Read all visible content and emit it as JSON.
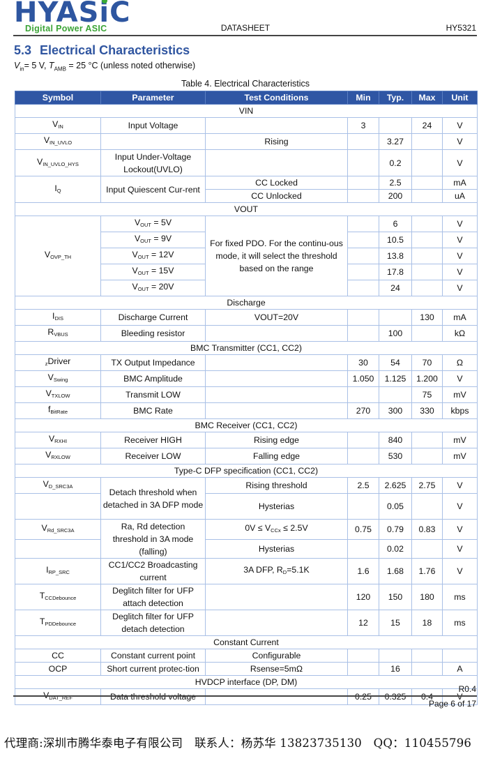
{
  "header": {
    "logo": "HYASiC",
    "tagline": "Digital Power ASIC",
    "doc_type": "DATASHEET",
    "part_number": "HY5321"
  },
  "section": {
    "number": "5.3",
    "title": "Electrical Characteristics",
    "conditions": {
      "v": "V",
      "v_sub": "in",
      "v_text": "= 5 V, ",
      "t": "T",
      "t_sub": "AMB",
      "t_text": " = 25 °C (unless noted otherwise)"
    }
  },
  "table": {
    "caption": "Table 4. Electrical Characteristics",
    "headers": [
      "Symbol",
      "Parameter",
      "Test Conditions",
      "Min",
      "Typ.",
      "Max",
      "Unit"
    ],
    "sections": [
      {
        "title": "VIN",
        "rows": [
          {
            "symbol": {
              "base": "V",
              "sub": "IN"
            },
            "parameter": "Input Voltage",
            "conditions": "",
            "min": "3",
            "typ": "",
            "max": "24",
            "unit": "V"
          },
          {
            "symbol": {
              "base": "V",
              "sub": "IN_UVLO"
            },
            "parameter": "",
            "conditions": "Rising",
            "min": "",
            "typ": "3.27",
            "max": "",
            "unit": "V"
          },
          {
            "symbol": {
              "base": "V",
              "sub": "IN_UVLO_HYS"
            },
            "parameter": "Input Under-Voltage Lockout(UVLO)",
            "conditions": "",
            "min": "",
            "typ": "0.2",
            "max": "",
            "unit": "V"
          },
          {
            "symbol": {
              "base": "I",
              "sub": "Q"
            },
            "parameter": "Input Quiescent Cur-rent",
            "conditions": "CC Locked",
            "min": "",
            "typ": "2.5",
            "max": "",
            "unit": "mA"
          },
          {
            "conditions": "CC Unlocked",
            "min": "",
            "typ": "200",
            "max": "",
            "unit": "uA"
          }
        ]
      },
      {
        "title": "VOUT",
        "rows": [
          {
            "symbol": {
              "base": "V",
              "sub": "OVP_TH"
            },
            "parameter": {
              "base": "V",
              "sub": "OUT",
              "rest": " = 5V"
            },
            "conditions": "For fixed PDO. For the continu-ous mode, it will select the threshold based on the range",
            "min": "",
            "typ": "6",
            "max": "",
            "unit": "V"
          },
          {
            "parameter": {
              "base": "V",
              "sub": "OUT",
              "rest": " = 9V"
            },
            "min": "",
            "typ": "10.5",
            "max": "",
            "unit": "V"
          },
          {
            "parameter": {
              "base": "V",
              "sub": "OUT",
              "rest": " = 12V"
            },
            "min": "",
            "typ": "13.8",
            "max": "",
            "unit": "V"
          },
          {
            "parameter": {
              "base": "V",
              "sub": "OUT",
              "rest": " = 15V"
            },
            "min": "",
            "typ": "17.8",
            "max": "",
            "unit": "V"
          },
          {
            "parameter": {
              "base": "V",
              "sub": "OUT",
              "rest": " = 20V"
            },
            "min": "",
            "typ": "24",
            "max": "",
            "unit": "V"
          }
        ]
      },
      {
        "title": "Discharge",
        "rows": [
          {
            "symbol": {
              "base": "I",
              "sub": "DIS"
            },
            "parameter": "Discharge Current",
            "conditions": "VOUT=20V",
            "min": "",
            "typ": "",
            "max": "130",
            "unit": "mA"
          },
          {
            "symbol": {
              "base": "R",
              "sub": "VBUS"
            },
            "parameter": "Bleeding resistor",
            "conditions": "",
            "min": "",
            "typ": "100",
            "max": "",
            "unit": "kΩ"
          }
        ]
      },
      {
        "title": "BMC Transmitter (CC1, CC2)",
        "rows": [
          {
            "symbol": {
              "pre": "Z",
              "base": "Driver",
              "sub": ""
            },
            "parameter": "TX Output Impedance",
            "conditions": "",
            "min": "30",
            "typ": "54",
            "max": "70",
            "unit": "Ω"
          },
          {
            "symbol": {
              "base": "V",
              "sub": "Swing"
            },
            "parameter": "BMC Amplitude",
            "conditions": "",
            "min": "1.050",
            "typ": "1.125",
            "max": "1.200",
            "unit": "V"
          },
          {
            "symbol": {
              "base": "V",
              "sub": "TXLOW"
            },
            "parameter": "Transmit LOW",
            "conditions": "",
            "min": "",
            "typ": "",
            "max": "75",
            "unit": "mV"
          },
          {
            "symbol": {
              "base": "f",
              "sub": "BitRate"
            },
            "parameter": "BMC Rate",
            "conditions": "",
            "min": "270",
            "typ": "300",
            "max": "330",
            "unit": "kbps"
          }
        ]
      },
      {
        "title": "BMC Receiver (CC1, CC2)",
        "rows": [
          {
            "symbol": {
              "base": "V",
              "sub": "RXHI"
            },
            "parameter": "Receiver HIGH",
            "conditions": "Rising edge",
            "min": "",
            "typ": "840",
            "max": "",
            "unit": "mV"
          },
          {
            "symbol": {
              "base": "V",
              "sub": "RXLOW"
            },
            "parameter": "Receiver LOW",
            "conditions": "Falling edge",
            "min": "",
            "typ": "530",
            "max": "",
            "unit": "mV"
          }
        ]
      },
      {
        "title": "Type-C DFP specification (CC1, CC2)",
        "rows": [
          {
            "symbol": {
              "base": "V",
              "sub": "D_SRC3A"
            },
            "parameter": "Detach threshold when detached in 3A DFP mode",
            "conditions": "Rising threshold",
            "min": "2.5",
            "typ": "2.625",
            "max": "2.75",
            "unit": "V"
          },
          {
            "symbol": {
              "base": "",
              "sub": ""
            },
            "conditions": "Hysterias",
            "min": "",
            "typ": "0.05",
            "max": "",
            "unit": "V"
          },
          {
            "symbol": {
              "base": "V",
              "sub": "Rd_SRC3A"
            },
            "parameter": "Ra, Rd detection threshold in 3A mode (falling)",
            "conditions": {
              "pre": "0V ≤ V",
              "sub": "CCx",
              "rest": " ≤ 2.5V"
            },
            "min": "0.75",
            "typ": "0.79",
            "max": "0.83",
            "unit": "V"
          },
          {
            "symbol": {
              "base": "",
              "sub": ""
            },
            "conditions": "Hysterias",
            "min": "",
            "typ": "0.02",
            "max": "",
            "unit": "V"
          },
          {
            "symbol": {
              "base": "I",
              "sub": "RP_SRC"
            },
            "parameter": "CC1/CC2 Broadcasting current",
            "conditions": {
              "pre": "3A DFP, R",
              "sub": "D",
              "rest": "=5.1K"
            },
            "min": "1.6",
            "typ": "1.68",
            "max": "1.76",
            "unit": "V"
          },
          {
            "symbol": {
              "base": "T",
              "sub": "CCDebounce"
            },
            "parameter": "Deglitch filter for UFP attach detection",
            "conditions": "",
            "min": "120",
            "typ": "150",
            "max": "180",
            "unit": "ms"
          },
          {
            "symbol": {
              "base": "T",
              "sub": "PDDebounce"
            },
            "parameter": "Deglitch filter for UFP detach detection",
            "conditions": "",
            "min": "12",
            "typ": "15",
            "max": "18",
            "unit": "ms"
          }
        ]
      },
      {
        "title": "Constant Current",
        "rows": [
          {
            "symbol": {
              "base": "CC",
              "sub": ""
            },
            "parameter": "Constant current point",
            "conditions": "Configurable",
            "min": "",
            "typ": "",
            "max": "",
            "unit": ""
          },
          {
            "symbol": {
              "base": "OCP",
              "sub": ""
            },
            "parameter": "Short current protec-tion",
            "conditions": "Rsense=5mΩ",
            "min": "",
            "typ": "16",
            "max": "",
            "unit": "A"
          }
        ]
      },
      {
        "title": "HVDCP interface (DP, DM)",
        "rows": [
          {
            "symbol": {
              "base": "V",
              "sub": "DAT_REF"
            },
            "parameter": "Data threshold voltage",
            "conditions": "",
            "min": "0.25",
            "typ": "0.325",
            "max": "0.4",
            "unit": "V"
          }
        ]
      }
    ]
  },
  "footer": {
    "revision": "R0.4",
    "page": "Page 6 of 17",
    "agent_line": "代理商:深圳市腾华泰电子有限公司　联系人：杨苏华 13823735130　QQ：110455796"
  },
  "colors": {
    "brand_blue": "#2e56a0",
    "brand_green": "#3aa335",
    "table_header": "#2f56a4",
    "table_border": "#a9c0e6"
  }
}
